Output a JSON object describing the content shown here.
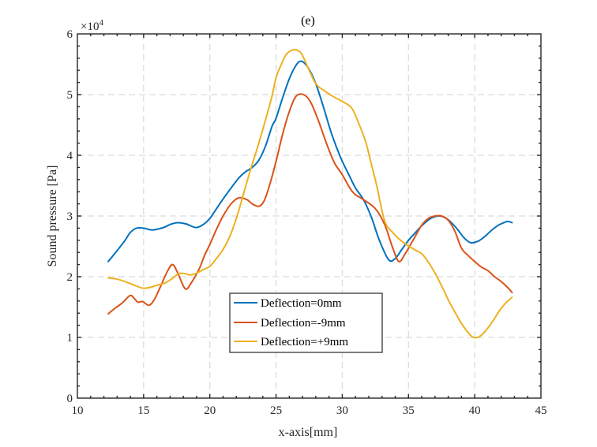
{
  "chart_data": {
    "type": "line",
    "title": "(e)",
    "xlabel": "x-axis[mm]",
    "ylabel": "Sound pressure [Pa]",
    "xlim": [
      10,
      45
    ],
    "ylim": [
      0,
      60000
    ],
    "y_exponent_label": "×10",
    "y_exponent": "4",
    "xticks": [
      10,
      15,
      20,
      25,
      30,
      35,
      40,
      45
    ],
    "xtick_labels": [
      "10",
      "15",
      "20",
      "25",
      "30",
      "35",
      "40",
      "45"
    ],
    "yticks": [
      0,
      10000,
      20000,
      30000,
      40000,
      50000,
      60000
    ],
    "ytick_labels": [
      "0",
      "1",
      "2",
      "3",
      "4",
      "5",
      "6"
    ],
    "grid": true,
    "legend_position": "bottom-center",
    "series": [
      {
        "name": "Deflection=0mm",
        "color": "#0072BD",
        "x": [
          12.33,
          13.0,
          13.6,
          14.0,
          14.47,
          15.0,
          15.67,
          16.5,
          17.0,
          17.55,
          18.2,
          18.94,
          19.5,
          20.0,
          20.5,
          21.0,
          21.6,
          22.2,
          22.7,
          23.2,
          23.7,
          24.2,
          24.7,
          25.0,
          25.5,
          26.0,
          26.5,
          26.9,
          27.4,
          28.0,
          28.6,
          29.2,
          29.9,
          30.5,
          31.0,
          31.6,
          32.2,
          32.8,
          33.5,
          34.0,
          34.5,
          35.0,
          35.5,
          36.0,
          36.6,
          37.2,
          37.7,
          38.2,
          38.7,
          39.2,
          39.7,
          40.3,
          40.8,
          41.3,
          41.8,
          42.2,
          42.48,
          42.82
        ],
        "y": [
          22500,
          24300,
          26000,
          27300,
          28000,
          28000,
          27700,
          28100,
          28600,
          28900,
          28700,
          28100,
          28600,
          29600,
          31200,
          32800,
          34600,
          36300,
          37300,
          38000,
          39200,
          41500,
          44800,
          46100,
          49500,
          52600,
          54800,
          55500,
          54500,
          51800,
          47800,
          43500,
          39500,
          36800,
          34600,
          32700,
          29800,
          26000,
          22800,
          23000,
          24500,
          26000,
          27200,
          28400,
          29500,
          30000,
          29800,
          29000,
          27800,
          26400,
          25600,
          25900,
          26700,
          27700,
          28500,
          28900,
          29100,
          28900
        ]
      },
      {
        "name": "Deflection=-9mm",
        "color": "#D95319",
        "x": [
          12.33,
          12.9,
          13.4,
          13.98,
          14.3,
          14.57,
          14.93,
          15.4,
          15.8,
          16.3,
          16.8,
          17.2,
          17.6,
          18.15,
          18.6,
          19.2,
          19.6,
          20.0,
          20.5,
          21.0,
          21.6,
          22.2,
          22.8,
          23.2,
          23.7,
          24.1,
          24.5,
          25.0,
          25.5,
          26.0,
          26.5,
          27.07,
          27.6,
          28.2,
          28.8,
          29.4,
          30.0,
          30.6,
          31.0,
          31.6,
          32.5,
          33.2,
          33.8,
          34.27,
          34.7,
          35.0,
          35.5,
          36.0,
          36.5,
          37.0,
          37.5,
          38.0,
          38.5,
          39.0,
          39.5,
          40.0,
          40.5,
          41.0,
          41.5,
          42.0,
          42.5,
          42.82
        ],
        "y": [
          13900,
          14900,
          15700,
          16900,
          16400,
          15800,
          15900,
          15300,
          16200,
          18500,
          20900,
          22000,
          20500,
          18000,
          19000,
          21300,
          23500,
          25300,
          27800,
          30000,
          32000,
          33000,
          32700,
          32000,
          31600,
          32500,
          35000,
          39000,
          43500,
          47200,
          49700,
          50000,
          48800,
          45700,
          42000,
          38800,
          36800,
          34500,
          33500,
          32700,
          31200,
          28600,
          24800,
          22500,
          23600,
          24700,
          26600,
          28500,
          29600,
          30000,
          30000,
          29300,
          27500,
          24700,
          23500,
          22500,
          21600,
          21000,
          20000,
          19200,
          18200,
          17400
        ]
      },
      {
        "name": "Deflection=+9mm",
        "color": "#EDB120",
        "x": [
          12.33,
          13.0,
          13.6,
          14.3,
          14.97,
          15.6,
          16.0,
          16.56,
          17.1,
          17.65,
          18.1,
          18.55,
          19.0,
          19.54,
          20.0,
          20.5,
          21.0,
          21.5,
          22.0,
          22.5,
          23.04,
          23.6,
          24.2,
          24.7,
          25.0,
          25.4,
          25.8,
          26.38,
          26.9,
          27.4,
          28.0,
          28.6,
          29.3,
          29.98,
          30.7,
          31.2,
          31.77,
          32.2,
          32.6,
          33.2,
          33.8,
          34.4,
          34.97,
          35.5,
          36.0,
          36.5,
          37.0,
          37.5,
          38.0,
          38.5,
          39.0,
          39.5,
          39.9,
          40.4,
          40.9,
          41.4,
          41.9,
          42.4,
          42.82
        ],
        "y": [
          19800,
          19600,
          19200,
          18600,
          18100,
          18300,
          18600,
          18900,
          19600,
          20500,
          20500,
          20300,
          20600,
          21200,
          21700,
          23000,
          24500,
          26600,
          29600,
          33300,
          37400,
          41300,
          45800,
          49800,
          52800,
          55000,
          56700,
          57400,
          56800,
          54500,
          51800,
          50700,
          49700,
          48900,
          47800,
          45500,
          42200,
          38500,
          35000,
          29200,
          27300,
          26000,
          25100,
          24400,
          23800,
          22400,
          20600,
          18500,
          16200,
          14200,
          12300,
          10800,
          10000,
          10200,
          11300,
          12800,
          14500,
          15800,
          16600
        ]
      }
    ]
  }
}
